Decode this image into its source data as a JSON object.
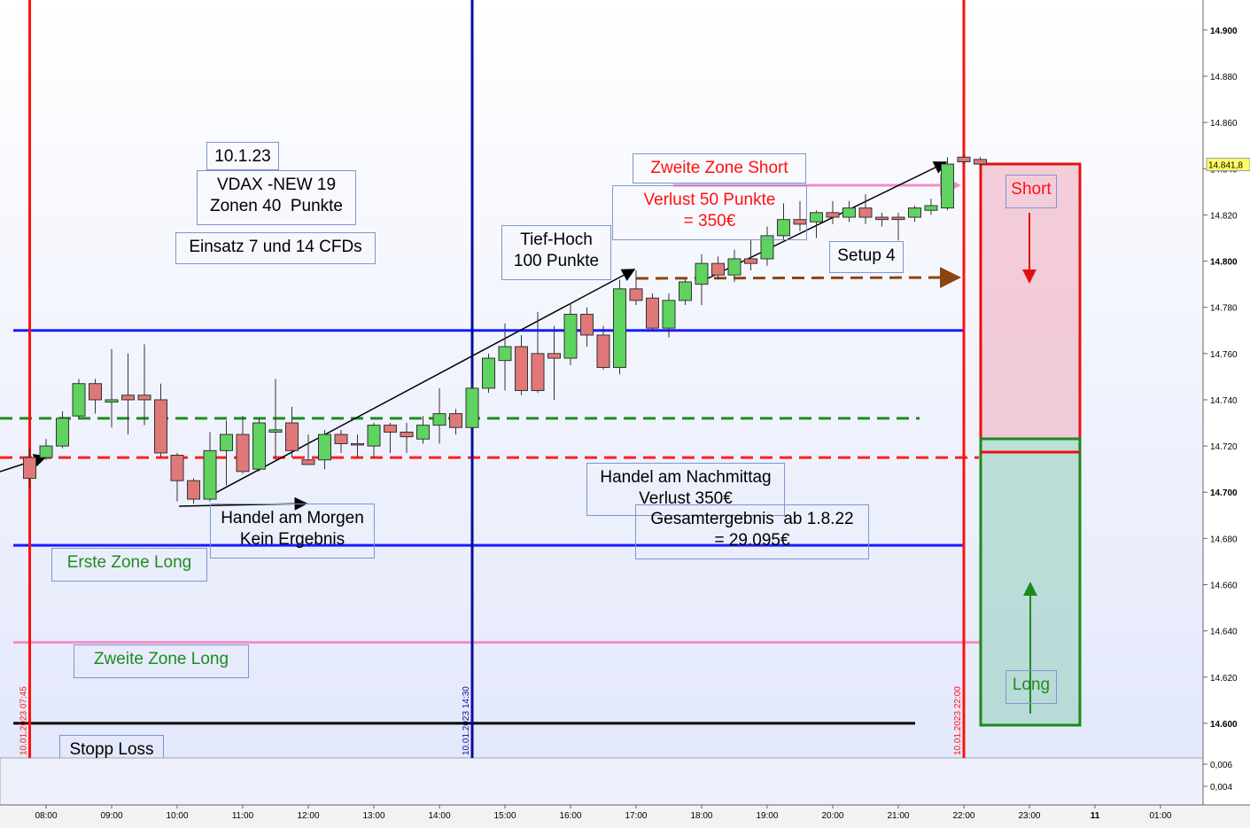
{
  "chart_data": {
    "type": "candlestick",
    "xlim": [
      7.297,
      25.649
    ],
    "xticks": [
      {
        "value": 8,
        "label": "08:00"
      },
      {
        "value": 9,
        "label": "09:00"
      },
      {
        "value": 10,
        "label": "10:00"
      },
      {
        "value": 11,
        "label": "11:00"
      },
      {
        "value": 12,
        "label": "12:00"
      },
      {
        "value": 13,
        "label": "13:00"
      },
      {
        "value": 14,
        "label": "14:00"
      },
      {
        "value": 15,
        "label": "15:00"
      },
      {
        "value": 16,
        "label": "16:00"
      },
      {
        "value": 17,
        "label": "17:00"
      },
      {
        "value": 18,
        "label": "18:00"
      },
      {
        "value": 19,
        "label": "19:00"
      },
      {
        "value": 20,
        "label": "20:00"
      },
      {
        "value": 21,
        "label": "21:00"
      },
      {
        "value": 22,
        "label": "22:00"
      },
      {
        "value": 23,
        "label": "23:00"
      },
      {
        "value": 24,
        "label": "11"
      },
      {
        "value": 25,
        "label": "01:00"
      }
    ],
    "ylim": [
      14585,
      14913
    ],
    "yticks": [
      {
        "value": 14600,
        "label": "14.600"
      },
      {
        "value": 14620,
        "label": "14.620"
      },
      {
        "value": 14640,
        "label": "14.640"
      },
      {
        "value": 14660,
        "label": "14.660"
      },
      {
        "value": 14680,
        "label": "14.680"
      },
      {
        "value": 14700,
        "label": "14.700"
      },
      {
        "value": 14720,
        "label": "14.720"
      },
      {
        "value": 14740,
        "label": "14.740"
      },
      {
        "value": 14760,
        "label": "14.760"
      },
      {
        "value": 14780,
        "label": "14.780"
      },
      {
        "value": 14800,
        "label": "14.800"
      },
      {
        "value": 14820,
        "label": "14.820"
      },
      {
        "value": 14840,
        "label": "14.840"
      },
      {
        "value": 14860,
        "label": "14.860"
      },
      {
        "value": 14880,
        "label": "14.880"
      },
      {
        "value": 14900,
        "label": "14.900"
      }
    ],
    "up_color": "#5fd35f",
    "down_color": "#e07878",
    "candles": [
      {
        "x": 7.75,
        "open": 14715,
        "high": 14719,
        "low": 14702,
        "close": 14706
      },
      {
        "x": 8.0,
        "open": 14715,
        "high": 14723,
        "low": 14714,
        "close": 14720
      },
      {
        "x": 8.25,
        "open": 14720,
        "high": 14735,
        "low": 14719,
        "close": 14732
      },
      {
        "x": 8.5,
        "open": 14733,
        "high": 14749,
        "low": 14732,
        "close": 14747
      },
      {
        "x": 8.75,
        "open": 14747,
        "high": 14749,
        "low": 14734,
        "close": 14740
      },
      {
        "x": 9.0,
        "open": 14739,
        "high": 14762,
        "low": 14728,
        "close": 14740
      },
      {
        "x": 9.25,
        "open": 14742,
        "high": 14760,
        "low": 14725,
        "close": 14740
      },
      {
        "x": 9.5,
        "open": 14742,
        "high": 14764,
        "low": 14729,
        "close": 14740
      },
      {
        "x": 9.75,
        "open": 14740,
        "high": 14747,
        "low": 14715,
        "close": 14717
      },
      {
        "x": 10.0,
        "open": 14716,
        "high": 14717,
        "low": 14696,
        "close": 14705
      },
      {
        "x": 10.25,
        "open": 14705,
        "high": 14706,
        "low": 14695,
        "close": 14697
      },
      {
        "x": 10.5,
        "open": 14697,
        "high": 14726,
        "low": 14696,
        "close": 14718
      },
      {
        "x": 10.75,
        "open": 14718,
        "high": 14731,
        "low": 14703,
        "close": 14725
      },
      {
        "x": 11.0,
        "open": 14725,
        "high": 14733,
        "low": 14708,
        "close": 14709
      },
      {
        "x": 11.25,
        "open": 14710,
        "high": 14732,
        "low": 14709,
        "close": 14730
      },
      {
        "x": 11.5,
        "open": 14726,
        "high": 14749,
        "low": 14714,
        "close": 14727
      },
      {
        "x": 11.75,
        "open": 14730,
        "high": 14737,
        "low": 14715,
        "close": 14718
      },
      {
        "x": 12.0,
        "open": 14714,
        "high": 14725,
        "low": 14712,
        "close": 14712
      },
      {
        "x": 12.25,
        "open": 14714,
        "high": 14727,
        "low": 14710,
        "close": 14725
      },
      {
        "x": 12.5,
        "open": 14725,
        "high": 14727,
        "low": 14717,
        "close": 14721
      },
      {
        "x": 12.75,
        "open": 14721,
        "high": 14725,
        "low": 14715,
        "close": 14721
      },
      {
        "x": 13.0,
        "open": 14720,
        "high": 14730,
        "low": 14715,
        "close": 14729
      },
      {
        "x": 13.25,
        "open": 14729,
        "high": 14730,
        "low": 14717,
        "close": 14726
      },
      {
        "x": 13.5,
        "open": 14726,
        "high": 14730,
        "low": 14717,
        "close": 14724
      },
      {
        "x": 13.75,
        "open": 14723,
        "high": 14733,
        "low": 14721,
        "close": 14729
      },
      {
        "x": 14.0,
        "open": 14729,
        "high": 14745,
        "low": 14721,
        "close": 14734
      },
      {
        "x": 14.25,
        "open": 14734,
        "high": 14736,
        "low": 14725,
        "close": 14728
      },
      {
        "x": 14.5,
        "open": 14728,
        "high": 14748,
        "low": 14727,
        "close": 14745
      },
      {
        "x": 14.75,
        "open": 14745,
        "high": 14760,
        "low": 14743,
        "close": 14758
      },
      {
        "x": 15.0,
        "open": 14757,
        "high": 14773,
        "low": 14744,
        "close": 14763
      },
      {
        "x": 15.25,
        "open": 14763,
        "high": 14768,
        "low": 14742,
        "close": 14744
      },
      {
        "x": 15.5,
        "open": 14760,
        "high": 14778,
        "low": 14743,
        "close": 14744
      },
      {
        "x": 15.75,
        "open": 14760,
        "high": 14772,
        "low": 14740,
        "close": 14758
      },
      {
        "x": 16.0,
        "open": 14758,
        "high": 14782,
        "low": 14755,
        "close": 14777
      },
      {
        "x": 16.25,
        "open": 14777,
        "high": 14780,
        "low": 14763,
        "close": 14768
      },
      {
        "x": 16.5,
        "open": 14768,
        "high": 14772,
        "low": 14753,
        "close": 14754
      },
      {
        "x": 16.75,
        "open": 14754,
        "high": 14792,
        "low": 14751,
        "close": 14788
      },
      {
        "x": 17.0,
        "open": 14788,
        "high": 14796,
        "low": 14781,
        "close": 14783
      },
      {
        "x": 17.25,
        "open": 14784,
        "high": 14786,
        "low": 14770,
        "close": 14771
      },
      {
        "x": 17.5,
        "open": 14771,
        "high": 14786,
        "low": 14767,
        "close": 14783
      },
      {
        "x": 17.75,
        "open": 14783,
        "high": 14792,
        "low": 14781,
        "close": 14791
      },
      {
        "x": 18.0,
        "open": 14790,
        "high": 14803,
        "low": 14781,
        "close": 14799
      },
      {
        "x": 18.25,
        "open": 14799,
        "high": 14802,
        "low": 14792,
        "close": 14794
      },
      {
        "x": 18.5,
        "open": 14794,
        "high": 14805,
        "low": 14791,
        "close": 14801
      },
      {
        "x": 18.75,
        "open": 14801,
        "high": 14809,
        "low": 14796,
        "close": 14799
      },
      {
        "x": 19.0,
        "open": 14801,
        "high": 14815,
        "low": 14798,
        "close": 14811
      },
      {
        "x": 19.25,
        "open": 14811,
        "high": 14825,
        "low": 14809,
        "close": 14818
      },
      {
        "x": 19.5,
        "open": 14818,
        "high": 14826,
        "low": 14813,
        "close": 14816
      },
      {
        "x": 19.75,
        "open": 14817,
        "high": 14822,
        "low": 14810,
        "close": 14821
      },
      {
        "x": 20.0,
        "open": 14821,
        "high": 14826,
        "low": 14816,
        "close": 14819
      },
      {
        "x": 20.25,
        "open": 14819,
        "high": 14826,
        "low": 14817,
        "close": 14823
      },
      {
        "x": 20.5,
        "open": 14823,
        "high": 14829,
        "low": 14816,
        "close": 14819
      },
      {
        "x": 20.75,
        "open": 14819,
        "high": 14821,
        "low": 14815,
        "close": 14818
      },
      {
        "x": 21.0,
        "open": 14819,
        "high": 14821,
        "low": 14809,
        "close": 14818
      },
      {
        "x": 21.25,
        "open": 14819,
        "high": 14824,
        "low": 14817,
        "close": 14823
      },
      {
        "x": 21.5,
        "open": 14822,
        "high": 14827,
        "low": 14820,
        "close": 14824
      },
      {
        "x": 21.75,
        "open": 14823,
        "high": 14845,
        "low": 14822,
        "close": 14842
      },
      {
        "x": 22.0,
        "open": 14845,
        "high": 14846,
        "low": 14842,
        "close": 14843
      },
      {
        "x": 22.25,
        "open": 14844,
        "high": 14845,
        "low": 14841,
        "close": 14842
      }
    ],
    "last_price": {
      "value": 14841.8,
      "label": "14.841,8"
    },
    "levels": [
      {
        "value": 14770,
        "color": "#1a1aff",
        "dash": false
      },
      {
        "value": 14677,
        "color": "#1a1aff",
        "dash": false
      },
      {
        "value": 14732,
        "color": "#1e8c1e",
        "dash": true
      },
      {
        "value": 14715,
        "color": "#ff2020",
        "dash": true
      },
      {
        "value": 14635,
        "color": "#f48cc8",
        "dash": false
      },
      {
        "value": 14600,
        "color": "#000000",
        "dash": false
      }
    ],
    "vlines": [
      {
        "x": 7.75,
        "label": "10.01.2023 07:45",
        "color": "#ff1010"
      },
      {
        "x": 14.5,
        "label": "10.01.2023 14:30",
        "color": "#0a0aa0"
      },
      {
        "x": 22.0,
        "label": "10.01.2023 22:00",
        "color": "#ff1010"
      }
    ],
    "annotations": [
      {
        "lines": [
          "10.1.23"
        ],
        "color": "#000000"
      },
      {
        "lines": [
          "VDAX -NEW 19",
          "Zonen 40  Punkte"
        ],
        "color": "#000000"
      },
      {
        "lines": [
          "Einsatz 7 und 14 CFDs"
        ],
        "color": "#000000"
      },
      {
        "lines": [
          "Tief-Hoch",
          "100 Punkte"
        ],
        "color": "#000000"
      },
      {
        "lines": [
          "Zweite Zone Short"
        ],
        "color": "#ff1010"
      },
      {
        "lines": [
          "Verlust 50 Punkte",
          "= 350€"
        ],
        "color": "#ff1010"
      },
      {
        "lines": [
          "Setup 4"
        ],
        "color": "#000000"
      },
      {
        "lines": [
          "Handel am Nachmittag",
          "Verlust 350€"
        ],
        "color": "#000000"
      },
      {
        "lines": [
          "Gesamtergebnis  ab 1.8.22",
          "= 29.095€"
        ],
        "color": "#000000"
      },
      {
        "lines": [
          "Handel am Morgen",
          "Kein Ergebnis"
        ],
        "color": "#000000"
      },
      {
        "lines": [
          "Erste Zone Long"
        ],
        "color": "#1e8c1e"
      },
      {
        "lines": [
          "Zweite Zone Long"
        ],
        "color": "#1e8c1e"
      },
      {
        "lines": [
          "Stopp Loss"
        ],
        "color": "#000000"
      },
      {
        "lines": [
          "Short"
        ],
        "color": "#ff1010"
      },
      {
        "lines": [
          "Long"
        ],
        "color": "#1e8c1e"
      }
    ],
    "indicator": {
      "ylim": [
        0.00232,
        0.00656
      ],
      "yticks": [
        {
          "value": 0.006,
          "label": "0,006"
        },
        {
          "value": 0.004,
          "label": "0,004"
        }
      ]
    }
  }
}
